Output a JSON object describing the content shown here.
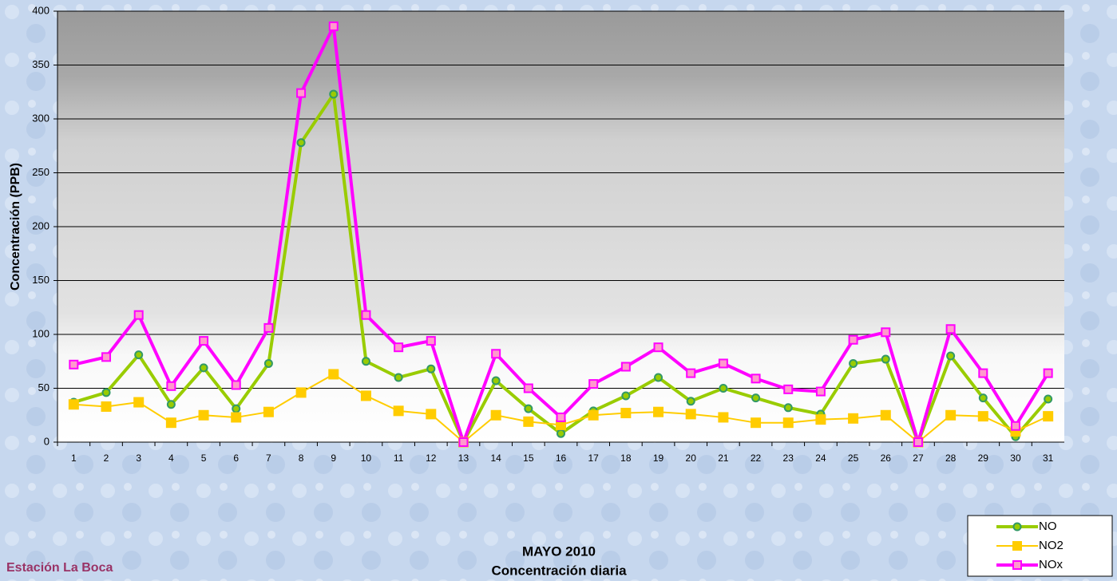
{
  "chart_data": {
    "type": "line",
    "title": "MAYO 2010",
    "subtitle": "Concentración diaria",
    "annotations": [
      "Estación La Boca"
    ],
    "y_label": "Concentración  (PPB)",
    "categories": [
      "1",
      "2",
      "3",
      "4",
      "5",
      "6",
      "7",
      "8",
      "9",
      "10",
      "11",
      "12",
      "13",
      "14",
      "15",
      "16",
      "17",
      "18",
      "19",
      "20",
      "21",
      "22",
      "23",
      "24",
      "25",
      "26",
      "27",
      "28",
      "29",
      "30",
      "31"
    ],
    "series": [
      {
        "name": "NO",
        "color": "#99cc00",
        "marker": "circle",
        "marker_edge": "#339966",
        "values": [
          37,
          46,
          81,
          35,
          69,
          31,
          73,
          278,
          323,
          75,
          60,
          68,
          0,
          57,
          31,
          8,
          29,
          43,
          60,
          38,
          50,
          41,
          32,
          26,
          73,
          77,
          0,
          80,
          41,
          5,
          40
        ]
      },
      {
        "name": "NO2",
        "color": "#ffcc00",
        "marker": "square",
        "marker_edge": "#ffcc00",
        "values": [
          35,
          33,
          37,
          18,
          25,
          23,
          28,
          46,
          63,
          43,
          29,
          26,
          0,
          25,
          19,
          16,
          25,
          27,
          28,
          26,
          23,
          18,
          18,
          21,
          22,
          25,
          0,
          25,
          24,
          10,
          24
        ]
      },
      {
        "name": "NOx",
        "color": "#ff00ff",
        "marker": "square",
        "marker_edge": "#ff00ff",
        "values": [
          72,
          79,
          118,
          52,
          94,
          53,
          106,
          324,
          386,
          118,
          88,
          94,
          0,
          82,
          50,
          23,
          54,
          70,
          88,
          64,
          73,
          59,
          49,
          47,
          95,
          102,
          0,
          105,
          64,
          15,
          64
        ]
      }
    ],
    "ylim": [
      0,
      400
    ],
    "yticks": [
      0,
      50,
      100,
      150,
      200,
      250,
      300,
      350,
      400
    ],
    "grid": true,
    "legend": "bottom-right"
  }
}
